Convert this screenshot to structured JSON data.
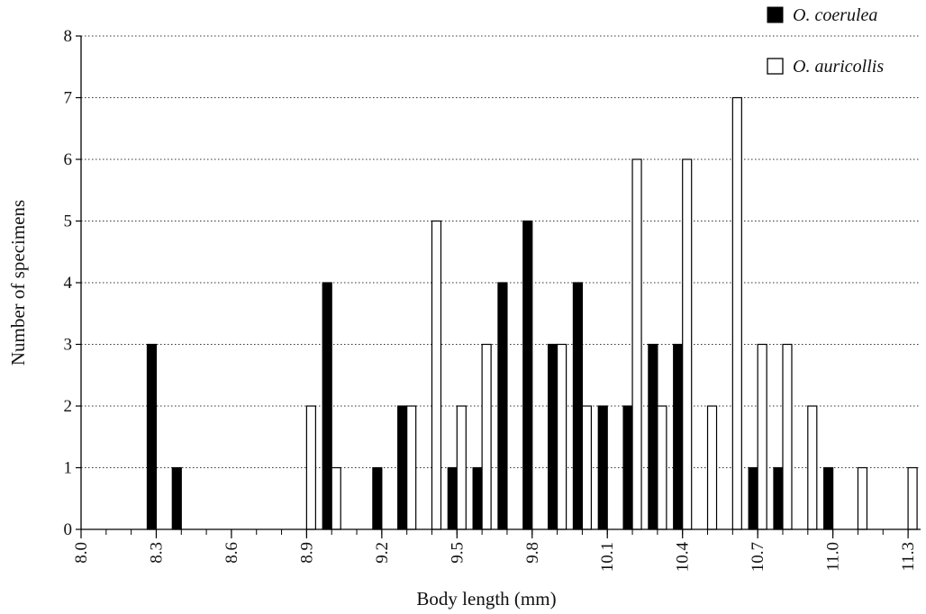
{
  "chart_data": {
    "type": "bar",
    "xlabel": "Body length (mm)",
    "ylabel": "Number of specimens",
    "ylim": [
      0,
      8
    ],
    "xlim": [
      8.0,
      11.35
    ],
    "x_tick_labels": [
      "8.0",
      "8.3",
      "8.6",
      "8.9",
      "9.2",
      "9.5",
      "9.8",
      "10.1",
      "10.4",
      "10.7",
      "11.0",
      "11.3"
    ],
    "y_tick_labels": [
      "0",
      "1",
      "2",
      "3",
      "4",
      "5",
      "6",
      "7",
      "8"
    ],
    "grid": true,
    "legend_position": "top-right",
    "series": [
      {
        "name": "O. coerulea",
        "color": "#000000",
        "points": [
          {
            "x": 8.3,
            "y": 3
          },
          {
            "x": 8.4,
            "y": 1
          },
          {
            "x": 9.0,
            "y": 4
          },
          {
            "x": 9.2,
            "y": 1
          },
          {
            "x": 9.3,
            "y": 2
          },
          {
            "x": 9.5,
            "y": 1
          },
          {
            "x": 9.6,
            "y": 1
          },
          {
            "x": 9.7,
            "y": 4
          },
          {
            "x": 9.8,
            "y": 5
          },
          {
            "x": 9.9,
            "y": 3
          },
          {
            "x": 10.0,
            "y": 4
          },
          {
            "x": 10.1,
            "y": 2
          },
          {
            "x": 10.2,
            "y": 2
          },
          {
            "x": 10.3,
            "y": 3
          },
          {
            "x": 10.4,
            "y": 3
          },
          {
            "x": 10.7,
            "y": 1
          },
          {
            "x": 10.8,
            "y": 1
          },
          {
            "x": 11.0,
            "y": 1
          }
        ]
      },
      {
        "name": "O. auricollis",
        "color": "#ffffff",
        "points": [
          {
            "x": 8.9,
            "y": 2
          },
          {
            "x": 9.0,
            "y": 1
          },
          {
            "x": 9.3,
            "y": 2
          },
          {
            "x": 9.4,
            "y": 5
          },
          {
            "x": 9.5,
            "y": 2
          },
          {
            "x": 9.6,
            "y": 3
          },
          {
            "x": 9.9,
            "y": 3
          },
          {
            "x": 10.0,
            "y": 2
          },
          {
            "x": 10.2,
            "y": 6
          },
          {
            "x": 10.3,
            "y": 2
          },
          {
            "x": 10.4,
            "y": 6
          },
          {
            "x": 10.5,
            "y": 2
          },
          {
            "x": 10.6,
            "y": 7
          },
          {
            "x": 10.7,
            "y": 3
          },
          {
            "x": 10.8,
            "y": 3
          },
          {
            "x": 10.9,
            "y": 2
          },
          {
            "x": 11.1,
            "y": 1
          },
          {
            "x": 11.3,
            "y": 1
          }
        ]
      }
    ]
  }
}
